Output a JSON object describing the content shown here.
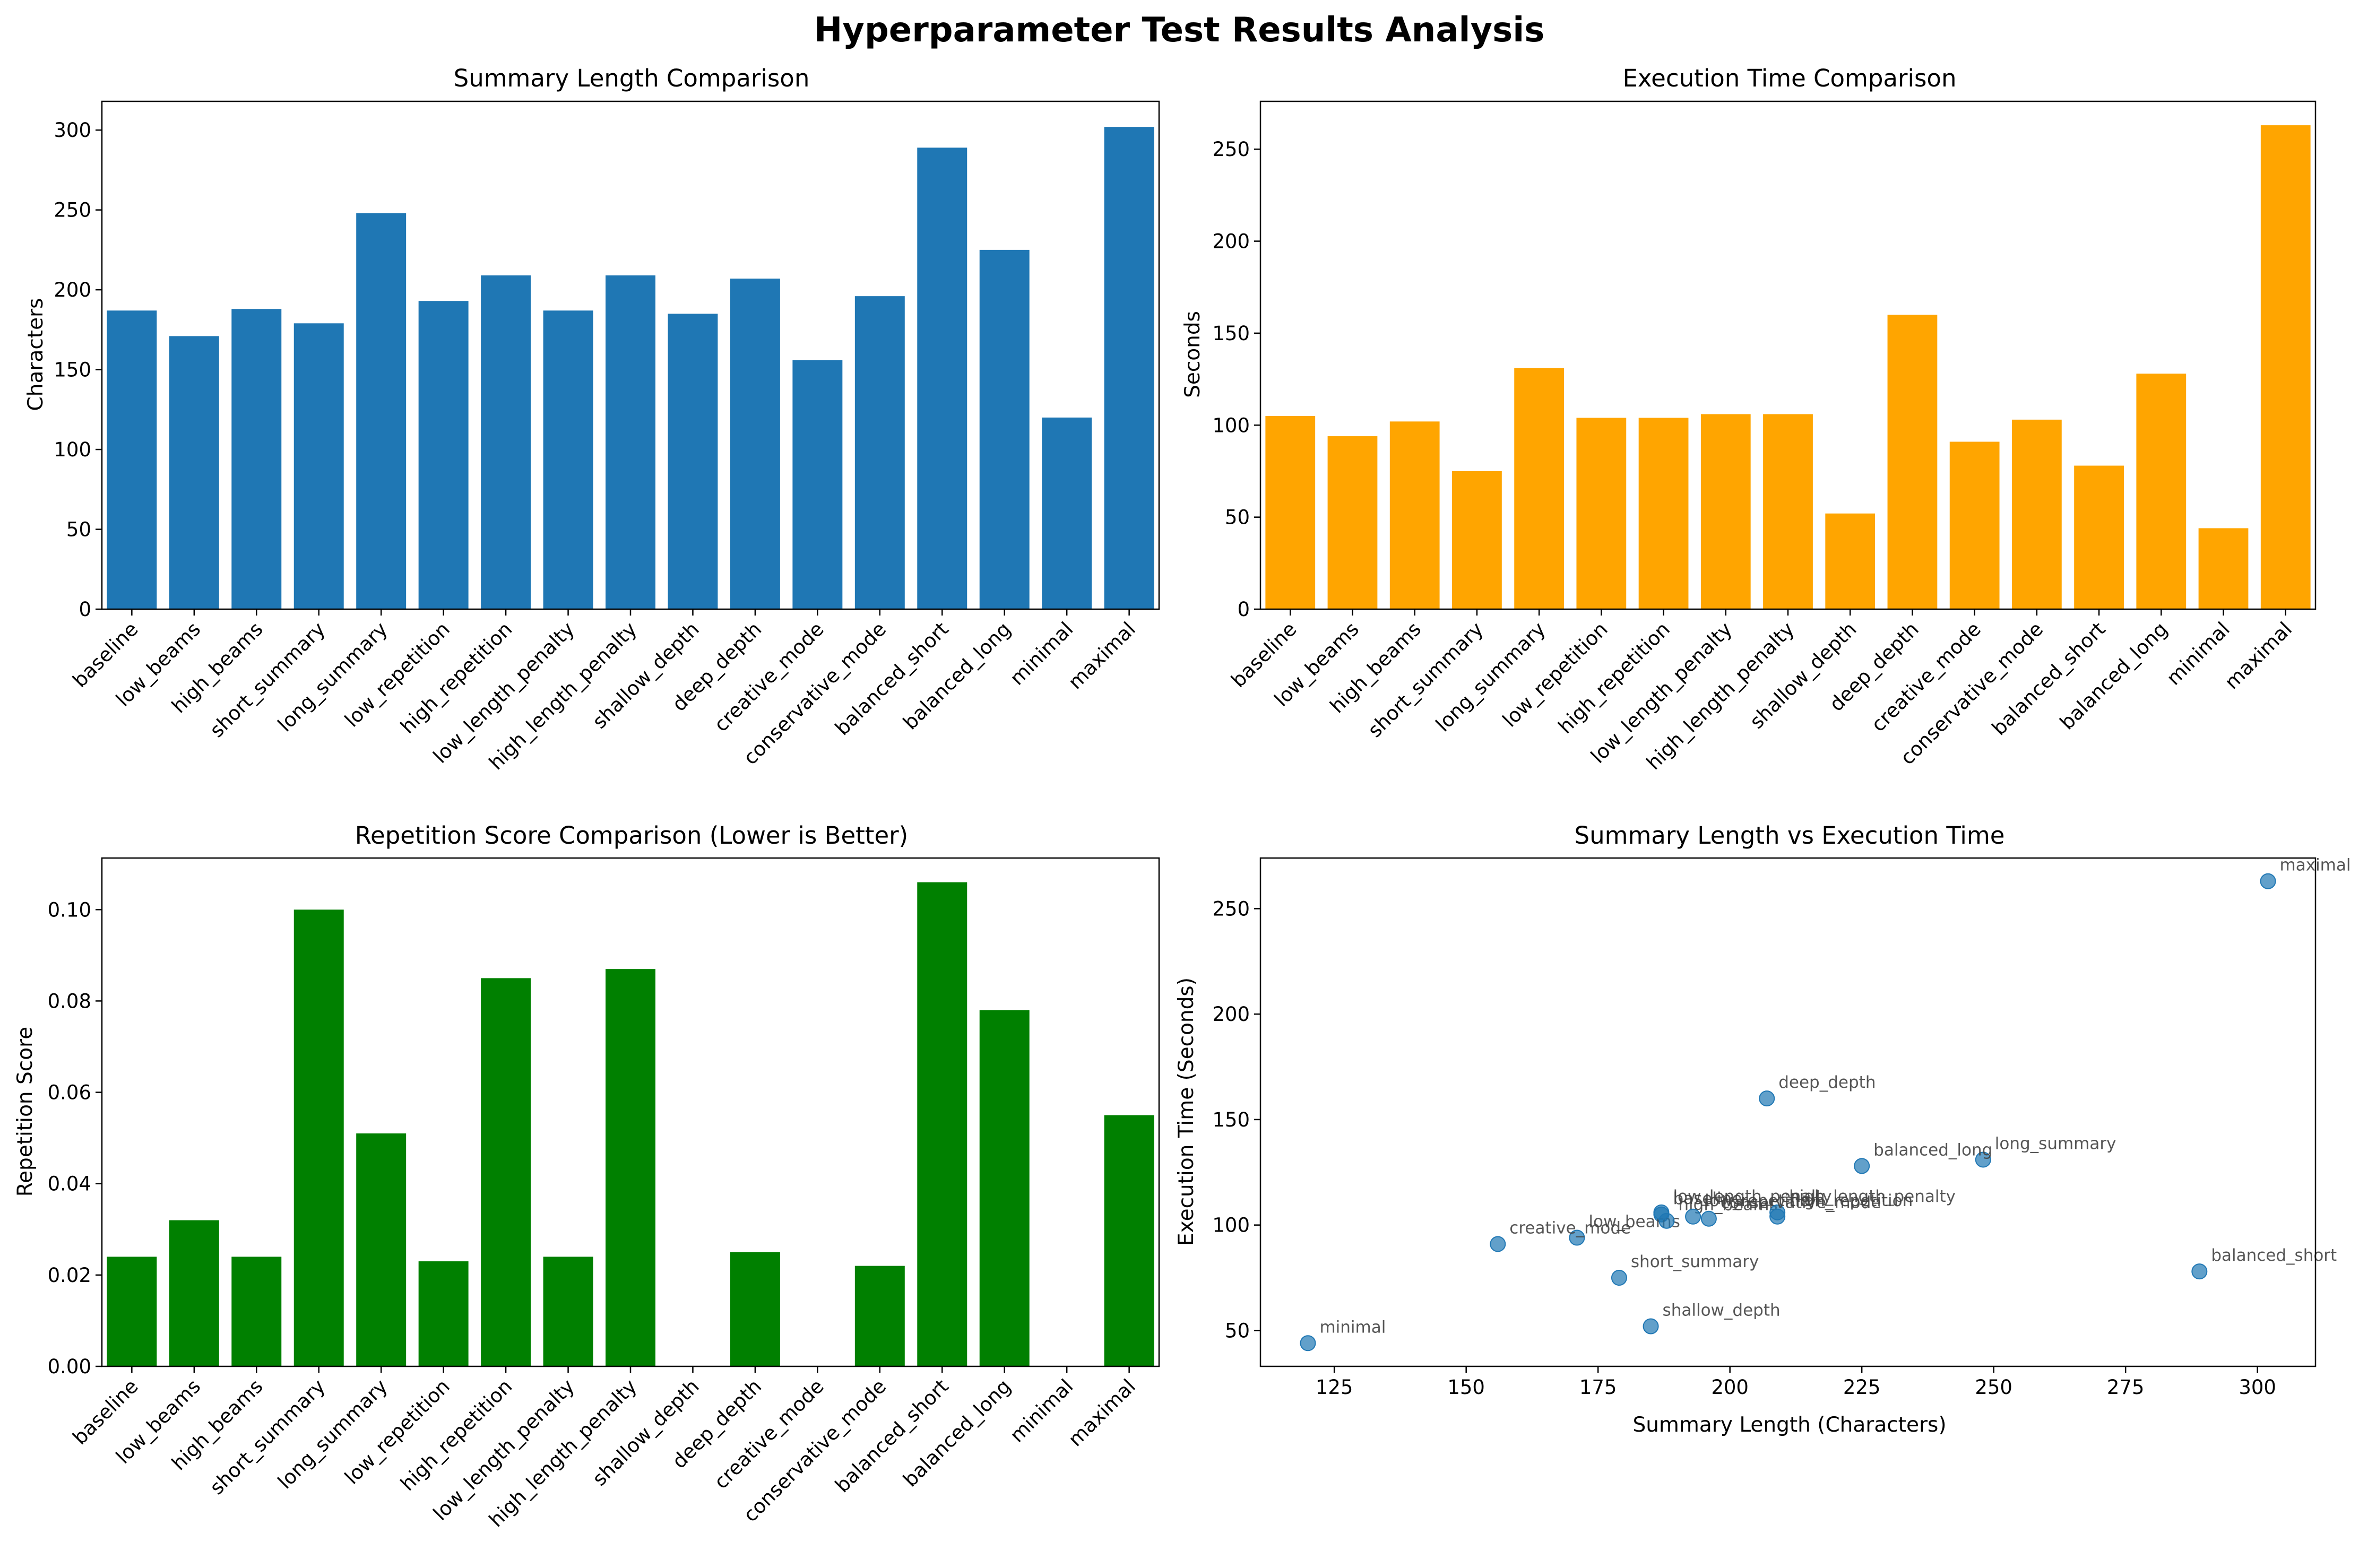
{
  "figure_title": "Hyperparameter Test Results Analysis",
  "categories": [
    "baseline",
    "low_beams",
    "high_beams",
    "short_summary",
    "long_summary",
    "low_repetition",
    "high_repetition",
    "low_length_penalty",
    "high_length_penalty",
    "shallow_depth",
    "deep_depth",
    "creative_mode",
    "conservative_mode",
    "balanced_short",
    "balanced_long",
    "minimal",
    "maximal"
  ],
  "colors": {
    "length": "#1f77b4",
    "time": "#ffa500",
    "repetition": "#008000",
    "scatter": "#1f77b4"
  },
  "chart_data": [
    {
      "type": "bar",
      "title": "Summary Length Comparison",
      "xlabel": "",
      "ylabel": "Characters",
      "ylim": [
        0,
        318
      ],
      "yticks": [
        0,
        50,
        100,
        150,
        200,
        250,
        300
      ],
      "ytick_labels": [
        "0",
        "50",
        "100",
        "150",
        "200",
        "250",
        "300"
      ],
      "values": [
        187,
        171,
        188,
        179,
        248,
        193,
        209,
        187,
        209,
        185,
        207,
        156,
        196,
        289,
        225,
        120,
        302
      ]
    },
    {
      "type": "bar",
      "title": "Execution Time Comparison",
      "xlabel": "",
      "ylabel": "Seconds",
      "ylim": [
        0,
        276
      ],
      "yticks": [
        0,
        50,
        100,
        150,
        200,
        250
      ],
      "ytick_labels": [
        "0",
        "50",
        "100",
        "150",
        "200",
        "250"
      ],
      "values": [
        105,
        94,
        102,
        75,
        131,
        104,
        104,
        106,
        106,
        52,
        160,
        91,
        103,
        78,
        128,
        44,
        263
      ]
    },
    {
      "type": "bar",
      "title": "Repetition Score Comparison (Lower is Better)",
      "xlabel": "",
      "ylabel": "Repetition Score",
      "ylim": [
        0,
        0.1113
      ],
      "yticks": [
        0,
        0.02,
        0.04,
        0.06,
        0.08,
        0.1
      ],
      "ytick_labels": [
        "0.00",
        "0.02",
        "0.04",
        "0.06",
        "0.08",
        "0.10"
      ],
      "values": [
        0.024,
        0.032,
        0.024,
        0.1,
        0.051,
        0.023,
        0.085,
        0.024,
        0.087,
        0,
        0.025,
        0,
        0.022,
        0.106,
        0.078,
        0,
        0.055
      ]
    },
    {
      "type": "scatter",
      "title": "Summary Length vs Execution Time",
      "xlabel": "Summary Length (Characters)",
      "ylabel": "Execution Time (Seconds)",
      "xlim": [
        111,
        311
      ],
      "ylim": [
        33,
        274
      ],
      "xticks": [
        125,
        150,
        175,
        200,
        225,
        250,
        275,
        300
      ],
      "xtick_labels": [
        "125",
        "150",
        "175",
        "200",
        "225",
        "250",
        "275",
        "300"
      ],
      "yticks": [
        50,
        100,
        150,
        200,
        250
      ],
      "ytick_labels": [
        "50",
        "100",
        "150",
        "200",
        "250"
      ],
      "points": [
        {
          "label": "baseline",
          "x": 187,
          "y": 105
        },
        {
          "label": "low_beams",
          "x": 171,
          "y": 94
        },
        {
          "label": "high_beams",
          "x": 188,
          "y": 102
        },
        {
          "label": "short_summary",
          "x": 179,
          "y": 75
        },
        {
          "label": "long_summary",
          "x": 248,
          "y": 131
        },
        {
          "label": "low_repetition",
          "x": 193,
          "y": 104
        },
        {
          "label": "high_repetition",
          "x": 209,
          "y": 104
        },
        {
          "label": "low_length_penalty",
          "x": 187,
          "y": 106
        },
        {
          "label": "high_length_penalty",
          "x": 209,
          "y": 106
        },
        {
          "label": "shallow_depth",
          "x": 185,
          "y": 52
        },
        {
          "label": "deep_depth",
          "x": 207,
          "y": 160
        },
        {
          "label": "creative_mode",
          "x": 156,
          "y": 91
        },
        {
          "label": "conservative_mode",
          "x": 196,
          "y": 103
        },
        {
          "label": "balanced_short",
          "x": 289,
          "y": 78
        },
        {
          "label": "balanced_long",
          "x": 225,
          "y": 128
        },
        {
          "label": "minimal",
          "x": 120,
          "y": 44
        },
        {
          "label": "maximal",
          "x": 302,
          "y": 263
        }
      ]
    }
  ]
}
